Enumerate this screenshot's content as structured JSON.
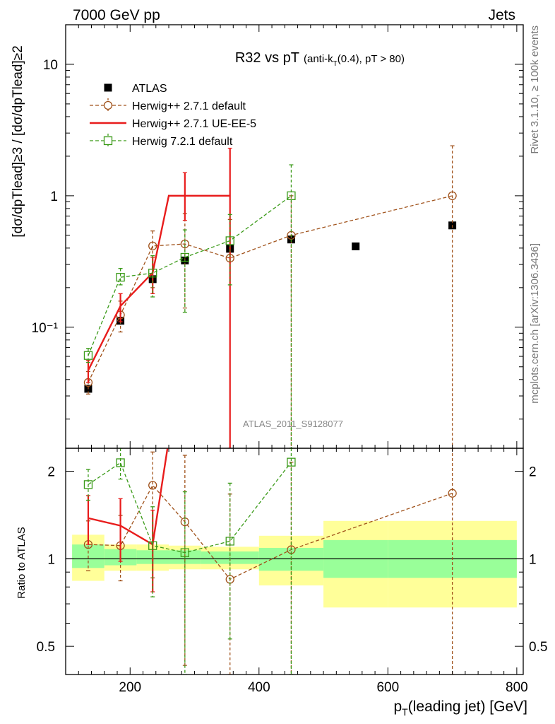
{
  "header": {
    "left": "7000 GeV pp",
    "right": "Jets"
  },
  "side_text": {
    "top": "Rivet 3.1.10, ≥ 100k events",
    "bottom": "mcplots.cern.ch [arXiv:1306.3436]"
  },
  "colors": {
    "atlas": "#000000",
    "herwig271_default": "#a0521b",
    "herwig271_ueee5": "#e81c1c",
    "herwig721_default": "#3a9a18",
    "band_inner": "#99ff99",
    "band_outer": "#ffff99"
  },
  "chart_data": [
    {
      "type": "scatter",
      "panel": "main",
      "title_main": "R32 vs pT",
      "title_sub_prefix": "(anti-k",
      "title_sub_subscript": "T",
      "title_sub_suffix": "(0.4), pT > 80)",
      "ylabel": "[dσ/dpᵀead]≥3 / [dσ/dpᵀead]≥2",
      "ylabel_display": "[dσ/dpTlead]≥3 / [dσ/dpTlead]≥2",
      "ylog": true,
      "ylim": [
        0.012,
        20
      ],
      "xlim": [
        100,
        810
      ],
      "y_tick_labels": [
        "10",
        "1",
        "10⁻¹"
      ],
      "analysis_id": "ATLAS_2011_S9128077",
      "legend": [
        "ATLAS",
        "Herwig++ 2.7.1 default",
        "Herwig++ 2.7.1 UE-EE-5",
        "Herwig 7.2.1 default"
      ],
      "legend_position": "top-left",
      "series": [
        {
          "name": "ATLAS",
          "style": "square-marker",
          "points": [
            {
              "x": 135,
              "y": 0.034,
              "xlo": 110,
              "xhi": 160
            },
            {
              "x": 185,
              "y": 0.112,
              "xlo": 160,
              "xhi": 210
            },
            {
              "x": 235,
              "y": 0.232,
              "xlo": 210,
              "xhi": 260
            },
            {
              "x": 285,
              "y": 0.322,
              "xlo": 260,
              "xhi": 310
            },
            {
              "x": 355,
              "y": 0.395,
              "xlo": 310,
              "xhi": 400
            },
            {
              "x": 450,
              "y": 0.465,
              "xlo": 400,
              "xhi": 500
            },
            {
              "x": 550,
              "y": 0.412,
              "xlo": 500,
              "xhi": 600
            },
            {
              "x": 700,
              "y": 0.595,
              "xlo": 600,
              "xhi": 800
            }
          ]
        },
        {
          "name": "Herwig++ 2.7.1 default",
          "style": "dashed-circle",
          "points": [
            {
              "x": 135,
              "y": 0.038,
              "lo": 0.031,
              "hi": 0.046
            },
            {
              "x": 185,
              "y": 0.124,
              "lo": 0.092,
              "hi": 0.158
            },
            {
              "x": 235,
              "y": 0.415,
              "lo": 0.2,
              "hi": 0.54
            },
            {
              "x": 285,
              "y": 0.43,
              "lo": 0.14,
              "hi": 0.73
            },
            {
              "x": 355,
              "y": 0.335,
              "lo": 0.012,
              "hi": 0.66
            },
            {
              "x": 450,
              "y": 0.5,
              "lo": 0.012,
              "hi": 1.0
            },
            {
              "x": 700,
              "y": 1.0,
              "lo": 0.012,
              "hi": 2.4
            }
          ]
        },
        {
          "name": "Herwig++ 2.7.1 UE-EE-5",
          "style": "solid-line",
          "points": [
            {
              "x": 135,
              "y": 0.047,
              "lo": 0.038,
              "hi": 0.056
            },
            {
              "x": 185,
              "y": 0.145,
              "lo": 0.11,
              "hi": 0.18
            },
            {
              "x": 235,
              "y": 0.26,
              "lo": 0.18,
              "hi": 0.34
            },
            {
              "x": 285,
              "y": 1.0,
              "lo": 0.65,
              "hi": 1.5
            },
            {
              "x": 355,
              "y": 1.0,
              "lo": 0.012,
              "hi": 2.3
            }
          ],
          "steps": [
            {
              "xlo": 260,
              "xhi": 310,
              "y": 1.0
            },
            {
              "xlo": 310,
              "xhi": 355,
              "y": 1.0
            }
          ]
        },
        {
          "name": "Herwig 7.2.1 default",
          "style": "dashed-square",
          "points": [
            {
              "x": 135,
              "y": 0.061,
              "lo": 0.054,
              "hi": 0.069
            },
            {
              "x": 185,
              "y": 0.24,
              "lo": 0.21,
              "hi": 0.28
            },
            {
              "x": 235,
              "y": 0.258,
              "lo": 0.17,
              "hi": 0.35
            },
            {
              "x": 285,
              "y": 0.34,
              "lo": 0.13,
              "hi": 0.55
            },
            {
              "x": 355,
              "y": 0.455,
              "lo": 0.21,
              "hi": 0.72
            },
            {
              "x": 450,
              "y": 1.0,
              "lo": 0.012,
              "hi": 1.72
            }
          ]
        }
      ]
    },
    {
      "type": "scatter",
      "panel": "ratio",
      "ylabel": "Ratio to ATLAS",
      "ylog": true,
      "ylim": [
        0.4,
        2.4
      ],
      "xlim": [
        100,
        810
      ],
      "xlabel": "p",
      "xlabel_subscript": "T",
      "xlabel_suffix": "(leading jet) [GeV]",
      "x_ticks": [
        200,
        400,
        600,
        800
      ],
      "y_ticks": [
        0.5,
        1,
        2
      ],
      "bands": [
        {
          "xlo": 110,
          "xhi": 160,
          "inner": [
            0.93,
            1.12
          ],
          "outer": [
            0.84,
            1.21
          ]
        },
        {
          "xlo": 160,
          "xhi": 210,
          "inner": [
            0.95,
            1.08
          ],
          "outer": [
            0.91,
            1.12
          ]
        },
        {
          "xlo": 210,
          "xhi": 260,
          "inner": [
            0.96,
            1.07
          ],
          "outer": [
            0.91,
            1.12
          ]
        },
        {
          "xlo": 260,
          "xhi": 310,
          "inner": [
            0.96,
            1.07
          ],
          "outer": [
            0.92,
            1.11
          ]
        },
        {
          "xlo": 310,
          "xhi": 400,
          "inner": [
            0.96,
            1.06
          ],
          "outer": [
            0.92,
            1.1
          ]
        },
        {
          "xlo": 400,
          "xhi": 500,
          "inner": [
            0.91,
            1.09
          ],
          "outer": [
            0.81,
            1.2
          ]
        },
        {
          "xlo": 500,
          "xhi": 600,
          "inner": [
            0.86,
            1.16
          ],
          "outer": [
            0.68,
            1.35
          ]
        },
        {
          "xlo": 600,
          "xhi": 800,
          "inner": [
            0.86,
            1.16
          ],
          "outer": [
            0.68,
            1.35
          ]
        }
      ],
      "series": [
        {
          "name": "Herwig++ 2.7.1 default",
          "style": "dashed-circle",
          "points": [
            {
              "x": 135,
              "y": 1.12,
              "lo": 0.91,
              "hi": 1.35
            },
            {
              "x": 185,
              "y": 1.11,
              "lo": 0.84,
              "hi": 1.41
            },
            {
              "x": 235,
              "y": 1.79,
              "lo": 0.86,
              "hi": 2.33
            },
            {
              "x": 285,
              "y": 1.34,
              "lo": 0.43,
              "hi": 2.27
            },
            {
              "x": 355,
              "y": 0.85,
              "lo": 0.4,
              "hi": 1.67
            },
            {
              "x": 450,
              "y": 1.075,
              "lo": 0.4,
              "hi": 2.15
            },
            {
              "x": 700,
              "y": 1.68,
              "lo": 0.4,
              "hi": 2.4
            }
          ]
        },
        {
          "name": "Herwig++ 2.7.1 UE-EE-5",
          "style": "solid-line",
          "points": [
            {
              "x": 135,
              "y": 1.38,
              "lo": 1.12,
              "hi": 1.65
            },
            {
              "x": 185,
              "y": 1.3,
              "lo": 0.98,
              "hi": 1.61
            },
            {
              "x": 235,
              "y": 1.12,
              "lo": 0.77,
              "hi": 1.47
            }
          ],
          "offscale_to": {
            "x": 258,
            "y": 2.4
          }
        },
        {
          "name": "Herwig 7.2.1 default",
          "style": "dashed-square",
          "points": [
            {
              "x": 135,
              "y": 1.8,
              "lo": 1.59,
              "hi": 2.03
            },
            {
              "x": 185,
              "y": 2.14,
              "lo": 1.88,
              "hi": 2.4
            },
            {
              "x": 235,
              "y": 1.11,
              "lo": 0.74,
              "hi": 1.51
            },
            {
              "x": 285,
              "y": 1.05,
              "lo": 0.4,
              "hi": 1.7
            },
            {
              "x": 355,
              "y": 1.15,
              "lo": 0.53,
              "hi": 1.82
            },
            {
              "x": 450,
              "y": 2.15,
              "lo": 0.4,
              "hi": 2.4
            }
          ]
        }
      ]
    }
  ]
}
